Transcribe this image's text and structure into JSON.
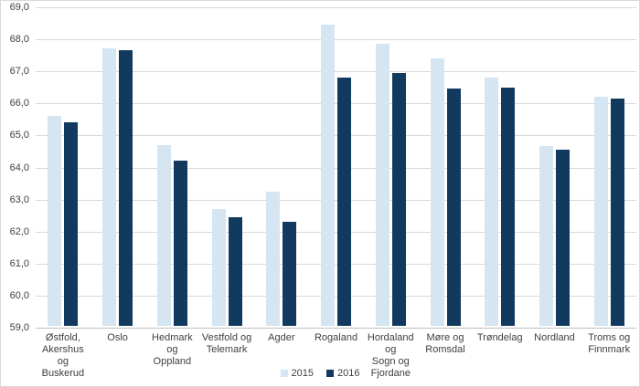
{
  "chart_data": {
    "type": "bar",
    "title": "",
    "xlabel": "",
    "ylabel": "",
    "categories": [
      "Østfold, Akershus og Buskerud",
      "Oslo",
      "Hedmark og Oppland",
      "Vestfold og Telemark",
      "Agder",
      "Rogaland",
      "Hordaland og Sogn og Fjordane",
      "Møre og Romsdal",
      "Trøndelag",
      "Nordland",
      "Troms og Finnmark"
    ],
    "categories_display": [
      [
        "Østfold,",
        "Akershus og",
        "Buskerud"
      ],
      [
        "Oslo"
      ],
      [
        "Hedmark og",
        "Oppland"
      ],
      [
        "Vestfold og",
        "Telemark"
      ],
      [
        "Agder"
      ],
      [
        "Rogaland"
      ],
      [
        "Hordaland og",
        "Sogn og",
        "Fjordane"
      ],
      [
        "Møre og",
        "Romsdal"
      ],
      [
        "Trøndelag"
      ],
      [
        "Nordland"
      ],
      [
        "Troms og",
        "Finnmark"
      ]
    ],
    "series": [
      {
        "name": "2015",
        "color": "#d5e5f2",
        "values": [
          65.55,
          67.65,
          64.65,
          62.65,
          63.2,
          68.4,
          67.8,
          67.35,
          66.75,
          64.6,
          66.15
        ]
      },
      {
        "name": "2016",
        "color": "#123a5e",
        "values": [
          65.35,
          67.6,
          64.15,
          62.4,
          62.25,
          66.75,
          66.9,
          66.4,
          66.45,
          64.5,
          66.1
        ]
      }
    ],
    "ylim": [
      59.0,
      69.0
    ],
    "ytick_step": 1.0,
    "ytick_labels": [
      "59,0",
      "60,0",
      "61,0",
      "62,0",
      "63,0",
      "64,0",
      "65,0",
      "66,0",
      "67,0",
      "68,0",
      "69,0"
    ],
    "grid": "horizontal",
    "legend_position": "bottom-center",
    "decimal_separator": ","
  },
  "colors": {
    "background": "#ffffff",
    "gridline": "#d9d9d9",
    "axis_line": "#bfbfbf",
    "text": "#404040",
    "series_2015": "#d5e5f2",
    "series_2016": "#123a5e"
  }
}
